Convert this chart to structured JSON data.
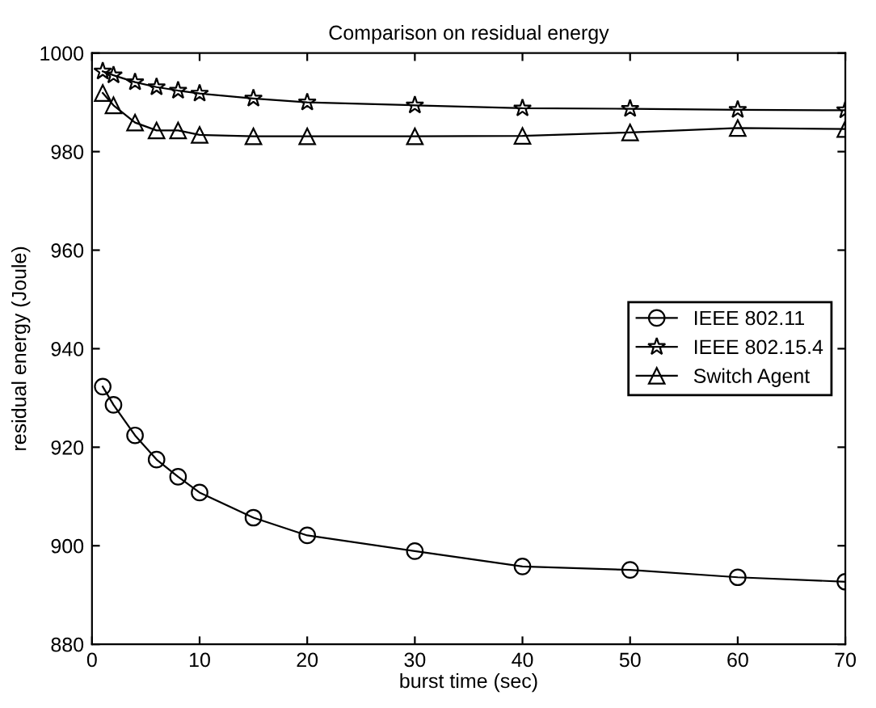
{
  "chart_data": {
    "type": "line",
    "title": "Comparison on residual energy",
    "xlabel": "burst time (sec)",
    "ylabel": "residual energy (Joule)",
    "x": [
      1,
      2,
      4,
      6,
      8,
      10,
      15,
      20,
      30,
      40,
      50,
      60,
      70
    ],
    "series": [
      {
        "name": "IEEE 802.11",
        "color": "#000000",
        "marker": "circle",
        "values": [
          932.3,
          928.6,
          922.4,
          917.5,
          914.0,
          910.8,
          905.7,
          902.1,
          898.9,
          895.8,
          895.1,
          893.6,
          892.7
        ]
      },
      {
        "name": "IEEE 802.15.4",
        "color": "#000000",
        "marker": "star",
        "values": [
          996.3,
          995.5,
          994.1,
          993.1,
          992.4,
          991.8,
          990.8,
          990.0,
          989.4,
          988.8,
          988.7,
          988.5,
          988.4
        ]
      },
      {
        "name": "Switch Agent",
        "color": "#000000",
        "marker": "triangle",
        "values": [
          991.9,
          989.4,
          985.9,
          984.3,
          984.3,
          983.4,
          983.1,
          983.1,
          983.1,
          983.2,
          983.9,
          984.8,
          984.6
        ]
      }
    ],
    "xlim": [
      0,
      70
    ],
    "ylim": [
      880,
      1000
    ],
    "xticks": [
      0,
      10,
      20,
      30,
      40,
      50,
      60,
      70
    ],
    "yticks": [
      880,
      900,
      920,
      940,
      960,
      980,
      1000
    ],
    "grid": false,
    "legend": "right",
    "line_style": "solid"
  }
}
